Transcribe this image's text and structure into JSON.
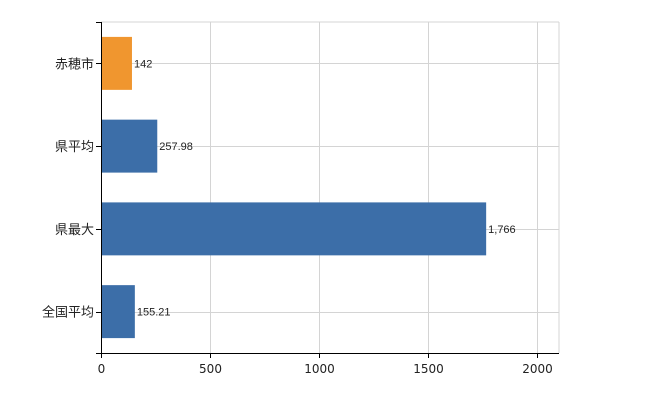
{
  "chart_data": {
    "type": "bar",
    "orientation": "horizontal",
    "categories": [
      "赤穂市",
      "県平均",
      "県最大",
      "全国平均"
    ],
    "values": [
      142,
      257.98,
      1766,
      155.21
    ],
    "value_labels": [
      "142",
      "257.98",
      "1,766",
      "155.21"
    ],
    "colors": [
      "#f0962f",
      "#3c6ea8",
      "#3c6ea8",
      "#3c6ea8"
    ],
    "xlim": [
      0,
      2100
    ],
    "xticks": [
      0,
      500,
      1000,
      1500,
      2000
    ],
    "xtick_labels": [
      "0",
      "500",
      "1000",
      "1500",
      "2000"
    ],
    "grid": true,
    "legend": "none"
  }
}
